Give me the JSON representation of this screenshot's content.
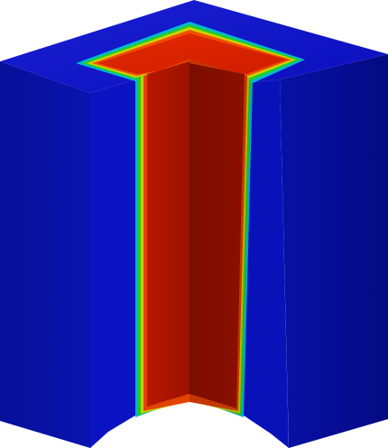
{
  "scene": {
    "object": "cutaway-block",
    "colormap": {
      "outer": "#0a0fbd",
      "outer_dark": "#08109e",
      "outer_darker": "#060b86",
      "band_cyan": "#00c8d8",
      "band_green": "#2ad21a",
      "band_yellow": "#d8d400",
      "band_orange": "#f25400",
      "inner": "#d42000",
      "inner_dark": "#9a1000",
      "inner_darker": "#6f0a00"
    }
  }
}
